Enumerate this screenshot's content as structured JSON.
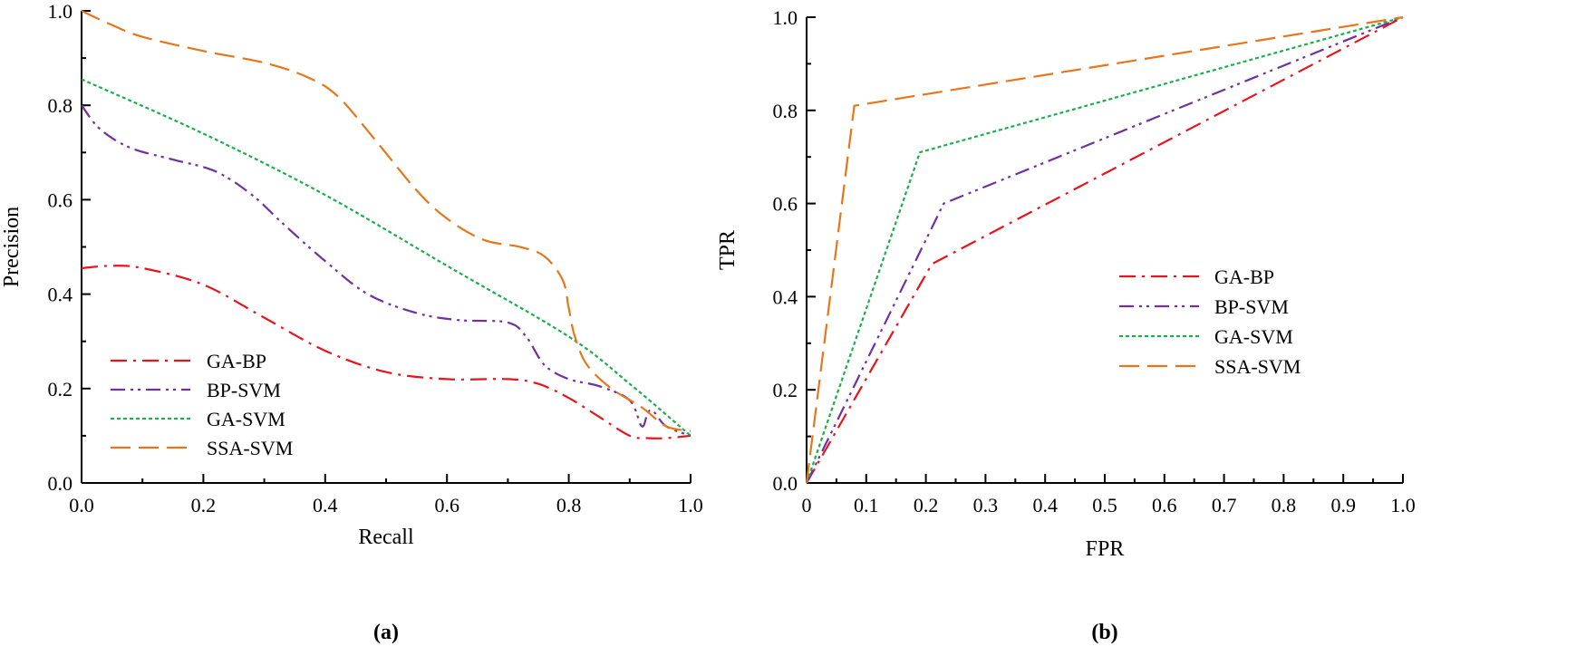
{
  "colors": {
    "GA-BP": "#e8141c",
    "BP-SVM": "#7030a0",
    "GA-SVM": "#19b04a",
    "SSA-SVM": "#e8751a"
  },
  "chart_data": [
    {
      "type": "line",
      "panel_label": "(a)",
      "title": "",
      "xlabel": "Recall",
      "ylabel": "Precision",
      "xlim": [
        0,
        1
      ],
      "ylim": [
        0,
        1
      ],
      "xticks": [
        0.0,
        0.2,
        0.4,
        0.6,
        0.8,
        1.0
      ],
      "xtick_labels": [
        "0.0",
        "0.2",
        "0.4",
        "0.6",
        "0.8",
        "1.0"
      ],
      "yticks": [
        0.0,
        0.2,
        0.4,
        0.6,
        0.8,
        1.0
      ],
      "ytick_labels": [
        "0.0",
        "0.2",
        "0.4",
        "0.6",
        "0.8",
        "1.0"
      ],
      "grid": false,
      "legend_position": "bottom-left",
      "series": [
        {
          "name": "GA-BP",
          "x": [
            0,
            0.05,
            0.1,
            0.2,
            0.3,
            0.4,
            0.5,
            0.6,
            0.7,
            0.75,
            0.8,
            0.85,
            0.9,
            0.93,
            0.96,
            1.0
          ],
          "y": [
            0.455,
            0.46,
            0.455,
            0.42,
            0.35,
            0.28,
            0.235,
            0.22,
            0.22,
            0.21,
            0.18,
            0.14,
            0.1,
            0.095,
            0.095,
            0.1
          ]
        },
        {
          "name": "BP-SVM",
          "x": [
            0,
            0.03,
            0.08,
            0.15,
            0.22,
            0.28,
            0.33,
            0.4,
            0.47,
            0.55,
            0.62,
            0.7,
            0.73,
            0.76,
            0.8,
            0.85,
            0.9,
            0.92,
            0.93,
            0.94,
            0.96,
            1.0
          ],
          "y": [
            0.8,
            0.75,
            0.71,
            0.685,
            0.66,
            0.61,
            0.55,
            0.47,
            0.4,
            0.36,
            0.345,
            0.34,
            0.31,
            0.25,
            0.22,
            0.205,
            0.175,
            0.12,
            0.15,
            0.15,
            0.12,
            0.1
          ]
        },
        {
          "name": "GA-SVM",
          "x": [
            0,
            0.2,
            0.4,
            0.6,
            0.8,
            0.9,
            1.0
          ],
          "y": [
            0.855,
            0.74,
            0.61,
            0.46,
            0.31,
            0.21,
            0.1
          ]
        },
        {
          "name": "SSA-SVM",
          "x": [
            0,
            0.05,
            0.1,
            0.2,
            0.3,
            0.37,
            0.42,
            0.48,
            0.55,
            0.6,
            0.66,
            0.72,
            0.76,
            0.79,
            0.8,
            0.81,
            0.83,
            0.87,
            0.92,
            0.96,
            1.0
          ],
          "y": [
            1.0,
            0.97,
            0.945,
            0.915,
            0.89,
            0.86,
            0.82,
            0.73,
            0.62,
            0.56,
            0.515,
            0.5,
            0.48,
            0.43,
            0.37,
            0.31,
            0.25,
            0.2,
            0.16,
            0.12,
            0.11
          ]
        }
      ]
    },
    {
      "type": "line",
      "panel_label": "(b)",
      "title": "",
      "xlabel": "FPR",
      "ylabel": "TPR",
      "xlim": [
        0,
        1
      ],
      "ylim": [
        0,
        1
      ],
      "xticks": [
        0,
        0.1,
        0.2,
        0.3,
        0.4,
        0.5,
        0.6,
        0.7,
        0.8,
        0.9,
        1.0
      ],
      "xtick_labels": [
        "0",
        "0.1",
        "0.2",
        "0.3",
        "0.4",
        "0.5",
        "0.6",
        "0.7",
        "0.8",
        "0.9",
        "1.0"
      ],
      "yticks": [
        0.0,
        0.2,
        0.4,
        0.6,
        0.8,
        1.0
      ],
      "ytick_labels": [
        "0.0",
        "0.2",
        "0.4",
        "0.6",
        "0.8",
        "1.0"
      ],
      "grid": false,
      "legend_position": "center-right",
      "series": [
        {
          "name": "GA-BP",
          "x": [
            0,
            0.21,
            1.0
          ],
          "y": [
            0,
            0.47,
            1.0
          ]
        },
        {
          "name": "BP-SVM",
          "x": [
            0,
            0.23,
            1.0
          ],
          "y": [
            0,
            0.6,
            1.0
          ]
        },
        {
          "name": "GA-SVM",
          "x": [
            0,
            0.19,
            1.0
          ],
          "y": [
            0,
            0.71,
            1.0
          ]
        },
        {
          "name": "SSA-SVM",
          "x": [
            0,
            0.08,
            1.0
          ],
          "y": [
            0,
            0.81,
            1.0
          ]
        }
      ]
    }
  ]
}
